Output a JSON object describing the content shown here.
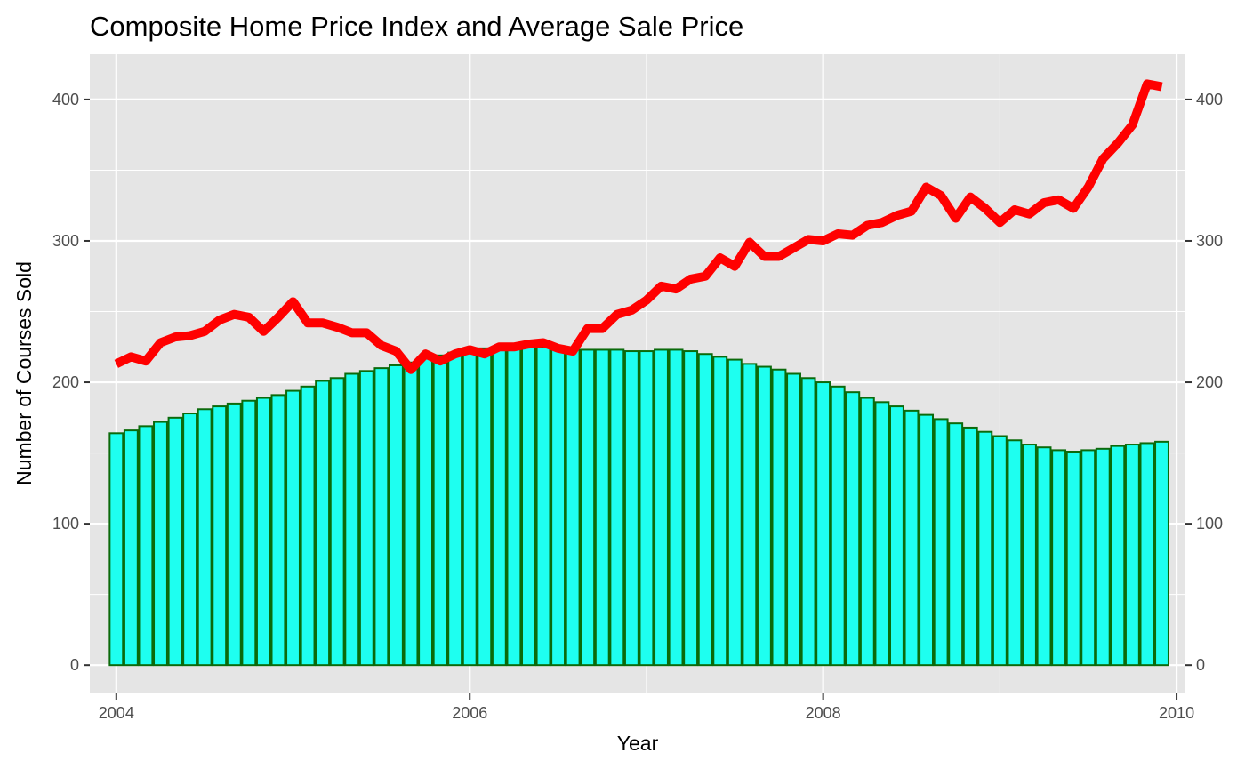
{
  "chart_data": {
    "type": "bar",
    "title": "Composite Home Price Index and Average Sale Price",
    "xlabel": "Year",
    "ylabel": "Number of Courses Sold",
    "xlim": [
      2003.85,
      2010.05
    ],
    "ylim": [
      -20,
      432
    ],
    "y2lim": [
      -20,
      432
    ],
    "x_ticks": [
      "2004",
      "2006",
      "2008",
      "2010"
    ],
    "y_ticks": [
      "0",
      "100",
      "200",
      "300",
      "400"
    ],
    "y2_ticks": [
      "0",
      "100",
      "200",
      "300",
      "400"
    ],
    "grid": true,
    "legend": "none",
    "colors": {
      "panel": "#e5e5e5",
      "grid": "#ffffff",
      "bar_fill": "#1efff0",
      "bar_outline": "#0b6a0b",
      "line": "#ff0000",
      "tick": "#333333"
    },
    "x_start": "2004-01",
    "interval": "monthly",
    "series": [
      {
        "type": "bar",
        "values": [
          164,
          166,
          169,
          172,
          175,
          178,
          181,
          183,
          185,
          187,
          189,
          191,
          194,
          197,
          201,
          203,
          206,
          208,
          210,
          212,
          214,
          217,
          219,
          221,
          223,
          224,
          225,
          225,
          225,
          225,
          224,
          223,
          223,
          223,
          223,
          222,
          222,
          223,
          223,
          222,
          220,
          218,
          216,
          213,
          211,
          209,
          206,
          203,
          200,
          197,
          193,
          189,
          186,
          183,
          180,
          177,
          174,
          171,
          168,
          165,
          162,
          159,
          156,
          154,
          152,
          151,
          152,
          153,
          155,
          156,
          157,
          158
        ]
      },
      {
        "type": "line",
        "values": [
          213,
          218,
          215,
          228,
          232,
          233,
          236,
          244,
          248,
          246,
          236,
          246,
          257,
          242,
          242,
          239,
          235,
          235,
          226,
          222,
          209,
          220,
          215,
          220,
          223,
          220,
          225,
          225,
          227,
          228,
          224,
          222,
          238,
          238,
          248,
          251,
          258,
          268,
          266,
          273,
          275,
          288,
          282,
          299,
          289,
          289,
          295,
          301,
          300,
          305,
          304,
          311,
          313,
          318,
          321,
          338,
          332,
          316,
          331,
          323,
          313,
          322,
          319,
          327,
          329,
          323,
          338,
          358,
          369,
          382,
          411,
          409
        ]
      }
    ]
  }
}
